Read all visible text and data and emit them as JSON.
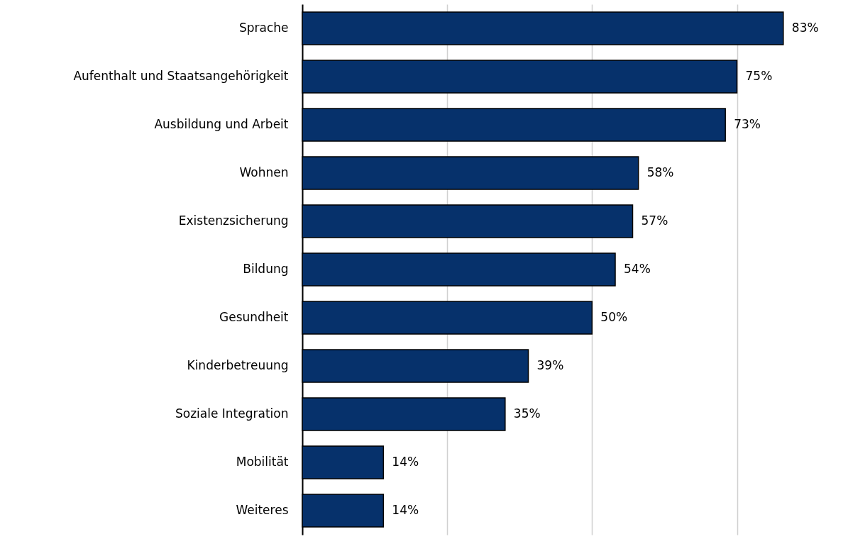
{
  "chart_data": {
    "type": "bar",
    "orientation": "horizontal",
    "categories": [
      "Sprache",
      "Aufenthalt und Staatsangehörigkeit",
      "Ausbildung und Arbeit",
      "Wohnen",
      "Existenzsicherung",
      "Bildung",
      "Gesundheit",
      "Kinderbetreuung",
      "Soziale Integration",
      "Mobilität",
      "Weiteres"
    ],
    "values": [
      83,
      75,
      73,
      58,
      57,
      54,
      50,
      39,
      35,
      14,
      14
    ],
    "value_labels": [
      "83%",
      "75%",
      "73%",
      "58%",
      "57%",
      "54%",
      "50%",
      "39%",
      "35%",
      "14%",
      "14%"
    ],
    "color": "#06316b",
    "xticks": [
      {
        "value": 0,
        "label": null
      },
      {
        "value": 25,
        "label": null
      },
      {
        "value": 50,
        "label": null
      },
      {
        "value": 75,
        "label": null
      }
    ],
    "grid": "x",
    "tick_labels": "y"
  }
}
